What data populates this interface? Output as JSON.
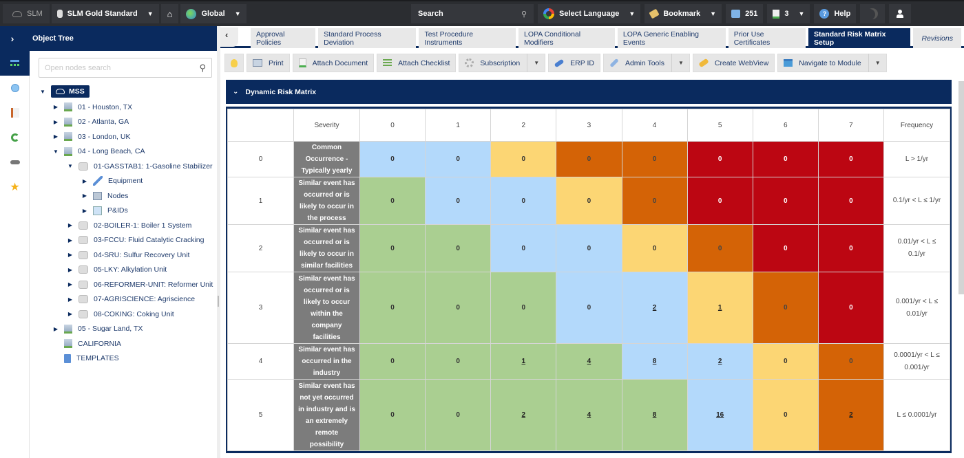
{
  "topbar": {
    "app_label": "SLM",
    "database": "SLM Gold Standard",
    "scope": "Global",
    "search_label": "Search",
    "language": "Select Language",
    "bookmark": "Bookmark",
    "mail_count": "251",
    "docs_count": "3",
    "help": "Help"
  },
  "object_tree": {
    "title": "Object Tree",
    "search_placeholder": "Open nodes search",
    "root": "MSS",
    "nodes": [
      {
        "label": "01 - Houston, TX",
        "depth": 1,
        "icon": "building",
        "expander": "collapsed"
      },
      {
        "label": "02 - Atlanta, GA",
        "depth": 1,
        "icon": "building",
        "expander": "collapsed"
      },
      {
        "label": "03 - London, UK",
        "depth": 1,
        "icon": "building",
        "expander": "collapsed"
      },
      {
        "label": "04 - Long Beach, CA",
        "depth": 1,
        "icon": "building",
        "expander": "expanded"
      },
      {
        "label": "01-GASSTAB1: 1-Gasoline Stabilizer",
        "depth": 2,
        "icon": "unit",
        "expander": "expanded"
      },
      {
        "label": "Equipment",
        "depth": 3,
        "icon": "wrench",
        "expander": "collapsed"
      },
      {
        "label": "Nodes",
        "depth": 3,
        "icon": "nodes",
        "expander": "collapsed"
      },
      {
        "label": "P&IDs",
        "depth": 3,
        "icon": "pid",
        "expander": "collapsed"
      },
      {
        "label": "02-BOILER-1: Boiler 1 System",
        "depth": 2,
        "icon": "unit",
        "expander": "collapsed"
      },
      {
        "label": "03-FCCU: Fluid Catalytic Cracking",
        "depth": 2,
        "icon": "unit",
        "expander": "collapsed"
      },
      {
        "label": "04-SRU: Sulfur Recovery Unit",
        "depth": 2,
        "icon": "unit",
        "expander": "collapsed"
      },
      {
        "label": "05-LKY: Alkylation Unit",
        "depth": 2,
        "icon": "unit",
        "expander": "collapsed"
      },
      {
        "label": "06-REFORMER-UNIT: Reformer Unit",
        "depth": 2,
        "icon": "unit",
        "expander": "collapsed"
      },
      {
        "label": "07-AGRISCIENCE: Agriscience",
        "depth": 2,
        "icon": "unit",
        "expander": "collapsed"
      },
      {
        "label": "08-COKING: Coking Unit",
        "depth": 2,
        "icon": "unit",
        "expander": "collapsed"
      },
      {
        "label": "05 - Sugar Land, TX",
        "depth": 1,
        "icon": "building",
        "expander": "collapsed"
      },
      {
        "label": "CALIFORNIA",
        "depth": 1,
        "icon": "building",
        "expander": "none"
      },
      {
        "label": "TEMPLATES",
        "depth": 1,
        "icon": "templates",
        "expander": "none"
      }
    ]
  },
  "rail": [
    "object-tree-icon",
    "search-icon",
    "report-book-icon",
    "refresh-icon",
    "link-icon",
    "favorites-star-icon"
  ],
  "tabs": [
    {
      "label": "Approval Policies",
      "active": false
    },
    {
      "label": "Standard Process Deviation",
      "active": false
    },
    {
      "label": "Test Procedure Instruments",
      "active": false
    },
    {
      "label": "LOPA Conditional Modifiers",
      "active": false
    },
    {
      "label": "LOPA Generic Enabling Events",
      "active": false
    },
    {
      "label": "Prior Use Certificates",
      "active": false
    },
    {
      "label": "Standard Risk Matrix Setup",
      "active": true
    },
    {
      "label": "Revisions",
      "active": false,
      "italic": true
    }
  ],
  "toolbar": {
    "print": "Print",
    "attach_document": "Attach Document",
    "attach_checklist": "Attach Checklist",
    "subscription": "Subscription",
    "erp_id": "ERP ID",
    "admin_tools": "Admin Tools",
    "create_webview": "Create WebView",
    "navigate_to_module": "Navigate to Module"
  },
  "section": {
    "title": "Dynamic Risk Matrix"
  },
  "matrix": {
    "severity_header": "Severity",
    "frequency_header": "Frequency",
    "severity_levels": [
      "0",
      "1",
      "2",
      "3",
      "4",
      "5",
      "6",
      "7"
    ],
    "colors": {
      "blue": "#b3d9fb",
      "green": "#aacf91",
      "yellow": "#fcd674",
      "orange": "#d46306",
      "red": "#bc0612",
      "desc_bg": "#7c7c7c",
      "header_bg": "#0a2a5e"
    },
    "rows": [
      {
        "index": "0",
        "description": "Common Occurrence - Typically yearly",
        "frequency": "L > 1/yr",
        "cells": [
          {
            "v": "0",
            "c": "blue"
          },
          {
            "v": "0",
            "c": "blue"
          },
          {
            "v": "0",
            "c": "yellow"
          },
          {
            "v": "0",
            "c": "orange"
          },
          {
            "v": "0",
            "c": "orange"
          },
          {
            "v": "0",
            "c": "red"
          },
          {
            "v": "0",
            "c": "red"
          },
          {
            "v": "0",
            "c": "red"
          }
        ]
      },
      {
        "index": "1",
        "description": "Similar event has occurred or is likely to occur in the process",
        "frequency": "0.1/yr < L ≤ 1/yr",
        "cells": [
          {
            "v": "0",
            "c": "green"
          },
          {
            "v": "0",
            "c": "blue"
          },
          {
            "v": "0",
            "c": "blue"
          },
          {
            "v": "0",
            "c": "yellow"
          },
          {
            "v": "0",
            "c": "orange"
          },
          {
            "v": "0",
            "c": "red"
          },
          {
            "v": "0",
            "c": "red"
          },
          {
            "v": "0",
            "c": "red"
          }
        ]
      },
      {
        "index": "2",
        "description": "Similar event has occurred or is likely to occur in similar facilities",
        "frequency": "0.01/yr < L ≤ 0.1/yr",
        "cells": [
          {
            "v": "0",
            "c": "green"
          },
          {
            "v": "0",
            "c": "green"
          },
          {
            "v": "0",
            "c": "blue"
          },
          {
            "v": "0",
            "c": "blue"
          },
          {
            "v": "0",
            "c": "yellow"
          },
          {
            "v": "0",
            "c": "orange"
          },
          {
            "v": "0",
            "c": "red"
          },
          {
            "v": "0",
            "c": "red"
          }
        ]
      },
      {
        "index": "3",
        "description": "Similar event has occurred or is likely to occur within the company facilities",
        "frequency": "0.001/yr < L ≤ 0.01/yr",
        "cells": [
          {
            "v": "0",
            "c": "green"
          },
          {
            "v": "0",
            "c": "green"
          },
          {
            "v": "0",
            "c": "green"
          },
          {
            "v": "0",
            "c": "blue"
          },
          {
            "v": "2",
            "c": "blue",
            "link": true
          },
          {
            "v": "1",
            "c": "yellow",
            "link": true
          },
          {
            "v": "0",
            "c": "orange"
          },
          {
            "v": "0",
            "c": "red"
          }
        ]
      },
      {
        "index": "4",
        "description": "Similar event has occurred in the industry",
        "frequency": "0.0001/yr < L ≤ 0.001/yr",
        "cells": [
          {
            "v": "0",
            "c": "green"
          },
          {
            "v": "0",
            "c": "green"
          },
          {
            "v": "1",
            "c": "green",
            "link": true
          },
          {
            "v": "4",
            "c": "green",
            "link": true
          },
          {
            "v": "8",
            "c": "blue",
            "link": true
          },
          {
            "v": "2",
            "c": "blue",
            "link": true
          },
          {
            "v": "0",
            "c": "yellow"
          },
          {
            "v": "0",
            "c": "orange"
          }
        ]
      },
      {
        "index": "5",
        "description": "Similar event has not yet occurred in industry and is an extremely remote possibility",
        "frequency": "L ≤ 0.0001/yr",
        "cells": [
          {
            "v": "0",
            "c": "green"
          },
          {
            "v": "0",
            "c": "green"
          },
          {
            "v": "2",
            "c": "green",
            "link": true
          },
          {
            "v": "4",
            "c": "green",
            "link": true
          },
          {
            "v": "8",
            "c": "green",
            "link": true
          },
          {
            "v": "16",
            "c": "blue",
            "link": true
          },
          {
            "v": "0",
            "c": "yellow"
          },
          {
            "v": "2",
            "c": "orange",
            "link": true
          }
        ]
      }
    ]
  }
}
